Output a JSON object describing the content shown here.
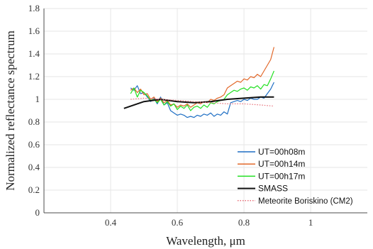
{
  "chart_data": {
    "type": "line",
    "xlabel": "Wavelength, μm",
    "ylabel": "Normalized reflectance spectrum",
    "xlim": [
      0.2,
      1.17
    ],
    "ylim": [
      0,
      1.8
    ],
    "x_ticks": [
      "0.4",
      "0.6",
      "0.8",
      "1"
    ],
    "x_tick_values": [
      0.4,
      0.6,
      0.8,
      1.0
    ],
    "y_ticks": [
      "0",
      "0.2",
      "0.4",
      "0.6",
      "0.8",
      "1",
      "1.2",
      "1.4",
      "1.6",
      "1.8"
    ],
    "y_tick_values": [
      0,
      0.2,
      0.4,
      0.6,
      0.8,
      1.0,
      1.2,
      1.4,
      1.6,
      1.8
    ],
    "grid": true,
    "legend_position": "bottom-right",
    "series": [
      {
        "name": "UT=00h08m",
        "color": "#1f6fc4",
        "style": "solid",
        "x": [
          0.46,
          0.47,
          0.48,
          0.49,
          0.5,
          0.51,
          0.52,
          0.53,
          0.54,
          0.55,
          0.56,
          0.57,
          0.58,
          0.59,
          0.6,
          0.61,
          0.62,
          0.63,
          0.64,
          0.65,
          0.66,
          0.67,
          0.68,
          0.69,
          0.7,
          0.71,
          0.72,
          0.73,
          0.74,
          0.75,
          0.76,
          0.77,
          0.78,
          0.79,
          0.8,
          0.81,
          0.82,
          0.83,
          0.84,
          0.85,
          0.86,
          0.87,
          0.88,
          0.89
        ],
        "y": [
          1.1,
          1.08,
          1.12,
          1.05,
          1.06,
          1.02,
          0.98,
          1.01,
          0.96,
          1.02,
          0.95,
          0.97,
          0.9,
          0.88,
          0.86,
          0.87,
          0.86,
          0.84,
          0.85,
          0.84,
          0.86,
          0.85,
          0.87,
          0.86,
          0.88,
          0.85,
          0.87,
          0.86,
          0.89,
          0.87,
          0.97,
          0.98,
          0.99,
          0.98,
          1.0,
          0.99,
          1.01,
          1.0,
          1.0,
          1.02,
          1.01,
          1.05,
          1.09,
          1.15
        ]
      },
      {
        "name": "UT=00h14m",
        "color": "#e2682a",
        "style": "solid",
        "x": [
          0.46,
          0.47,
          0.48,
          0.49,
          0.5,
          0.51,
          0.52,
          0.53,
          0.54,
          0.55,
          0.56,
          0.57,
          0.58,
          0.59,
          0.6,
          0.61,
          0.62,
          0.63,
          0.64,
          0.65,
          0.66,
          0.67,
          0.68,
          0.69,
          0.7,
          0.71,
          0.72,
          0.73,
          0.74,
          0.75,
          0.76,
          0.77,
          0.78,
          0.79,
          0.8,
          0.81,
          0.82,
          0.83,
          0.84,
          0.85,
          0.86,
          0.87,
          0.88,
          0.89
        ],
        "y": [
          1.08,
          1.1,
          1.06,
          1.09,
          1.04,
          1.05,
          1.0,
          1.02,
          0.98,
          1.01,
          0.97,
          0.99,
          0.95,
          0.96,
          0.93,
          0.95,
          0.94,
          0.96,
          0.93,
          0.95,
          0.97,
          0.96,
          0.98,
          0.97,
          1.0,
          0.99,
          1.01,
          1.02,
          1.04,
          1.1,
          1.12,
          1.14,
          1.16,
          1.15,
          1.18,
          1.17,
          1.2,
          1.19,
          1.22,
          1.2,
          1.25,
          1.3,
          1.35,
          1.46
        ]
      },
      {
        "name": "UT=00h17m",
        "color": "#22e022",
        "style": "solid",
        "x": [
          0.46,
          0.47,
          0.48,
          0.49,
          0.5,
          0.51,
          0.52,
          0.53,
          0.54,
          0.55,
          0.56,
          0.57,
          0.58,
          0.59,
          0.6,
          0.61,
          0.62,
          0.63,
          0.64,
          0.65,
          0.66,
          0.67,
          0.68,
          0.69,
          0.7,
          0.71,
          0.72,
          0.73,
          0.74,
          0.75,
          0.76,
          0.77,
          0.78,
          0.79,
          0.8,
          0.81,
          0.82,
          0.83,
          0.84,
          0.85,
          0.86,
          0.87,
          0.88,
          0.89
        ],
        "y": [
          1.05,
          1.1,
          1.02,
          1.08,
          1.06,
          1.03,
          0.99,
          1.0,
          0.97,
          1.0,
          0.95,
          0.98,
          0.94,
          0.96,
          0.91,
          0.94,
          0.92,
          0.95,
          0.9,
          0.93,
          0.94,
          0.92,
          0.95,
          0.93,
          0.97,
          0.96,
          0.98,
          0.99,
          1.0,
          1.04,
          1.06,
          1.08,
          1.07,
          1.09,
          1.1,
          1.08,
          1.11,
          1.1,
          1.12,
          1.09,
          1.13,
          1.12,
          1.18,
          1.25
        ]
      },
      {
        "name": "SMASS",
        "color": "#111111",
        "style": "solid",
        "x": [
          0.44,
          0.5,
          0.55,
          0.6,
          0.65,
          0.7,
          0.75,
          0.8,
          0.85,
          0.89
        ],
        "y": [
          0.92,
          0.98,
          1.0,
          0.98,
          0.97,
          0.98,
          1.0,
          1.01,
          1.02,
          1.02
        ]
      },
      {
        "name": "Meteorite Boriskino (CM2)",
        "color": "#e8707a",
        "style": "dotted",
        "x": [
          0.46,
          0.5,
          0.55,
          0.6,
          0.65,
          0.7,
          0.75,
          0.8,
          0.85,
          0.89
        ],
        "y": [
          1.0,
          1.01,
          1.0,
          0.99,
          0.98,
          0.97,
          0.96,
          0.96,
          0.95,
          0.94
        ]
      }
    ]
  }
}
